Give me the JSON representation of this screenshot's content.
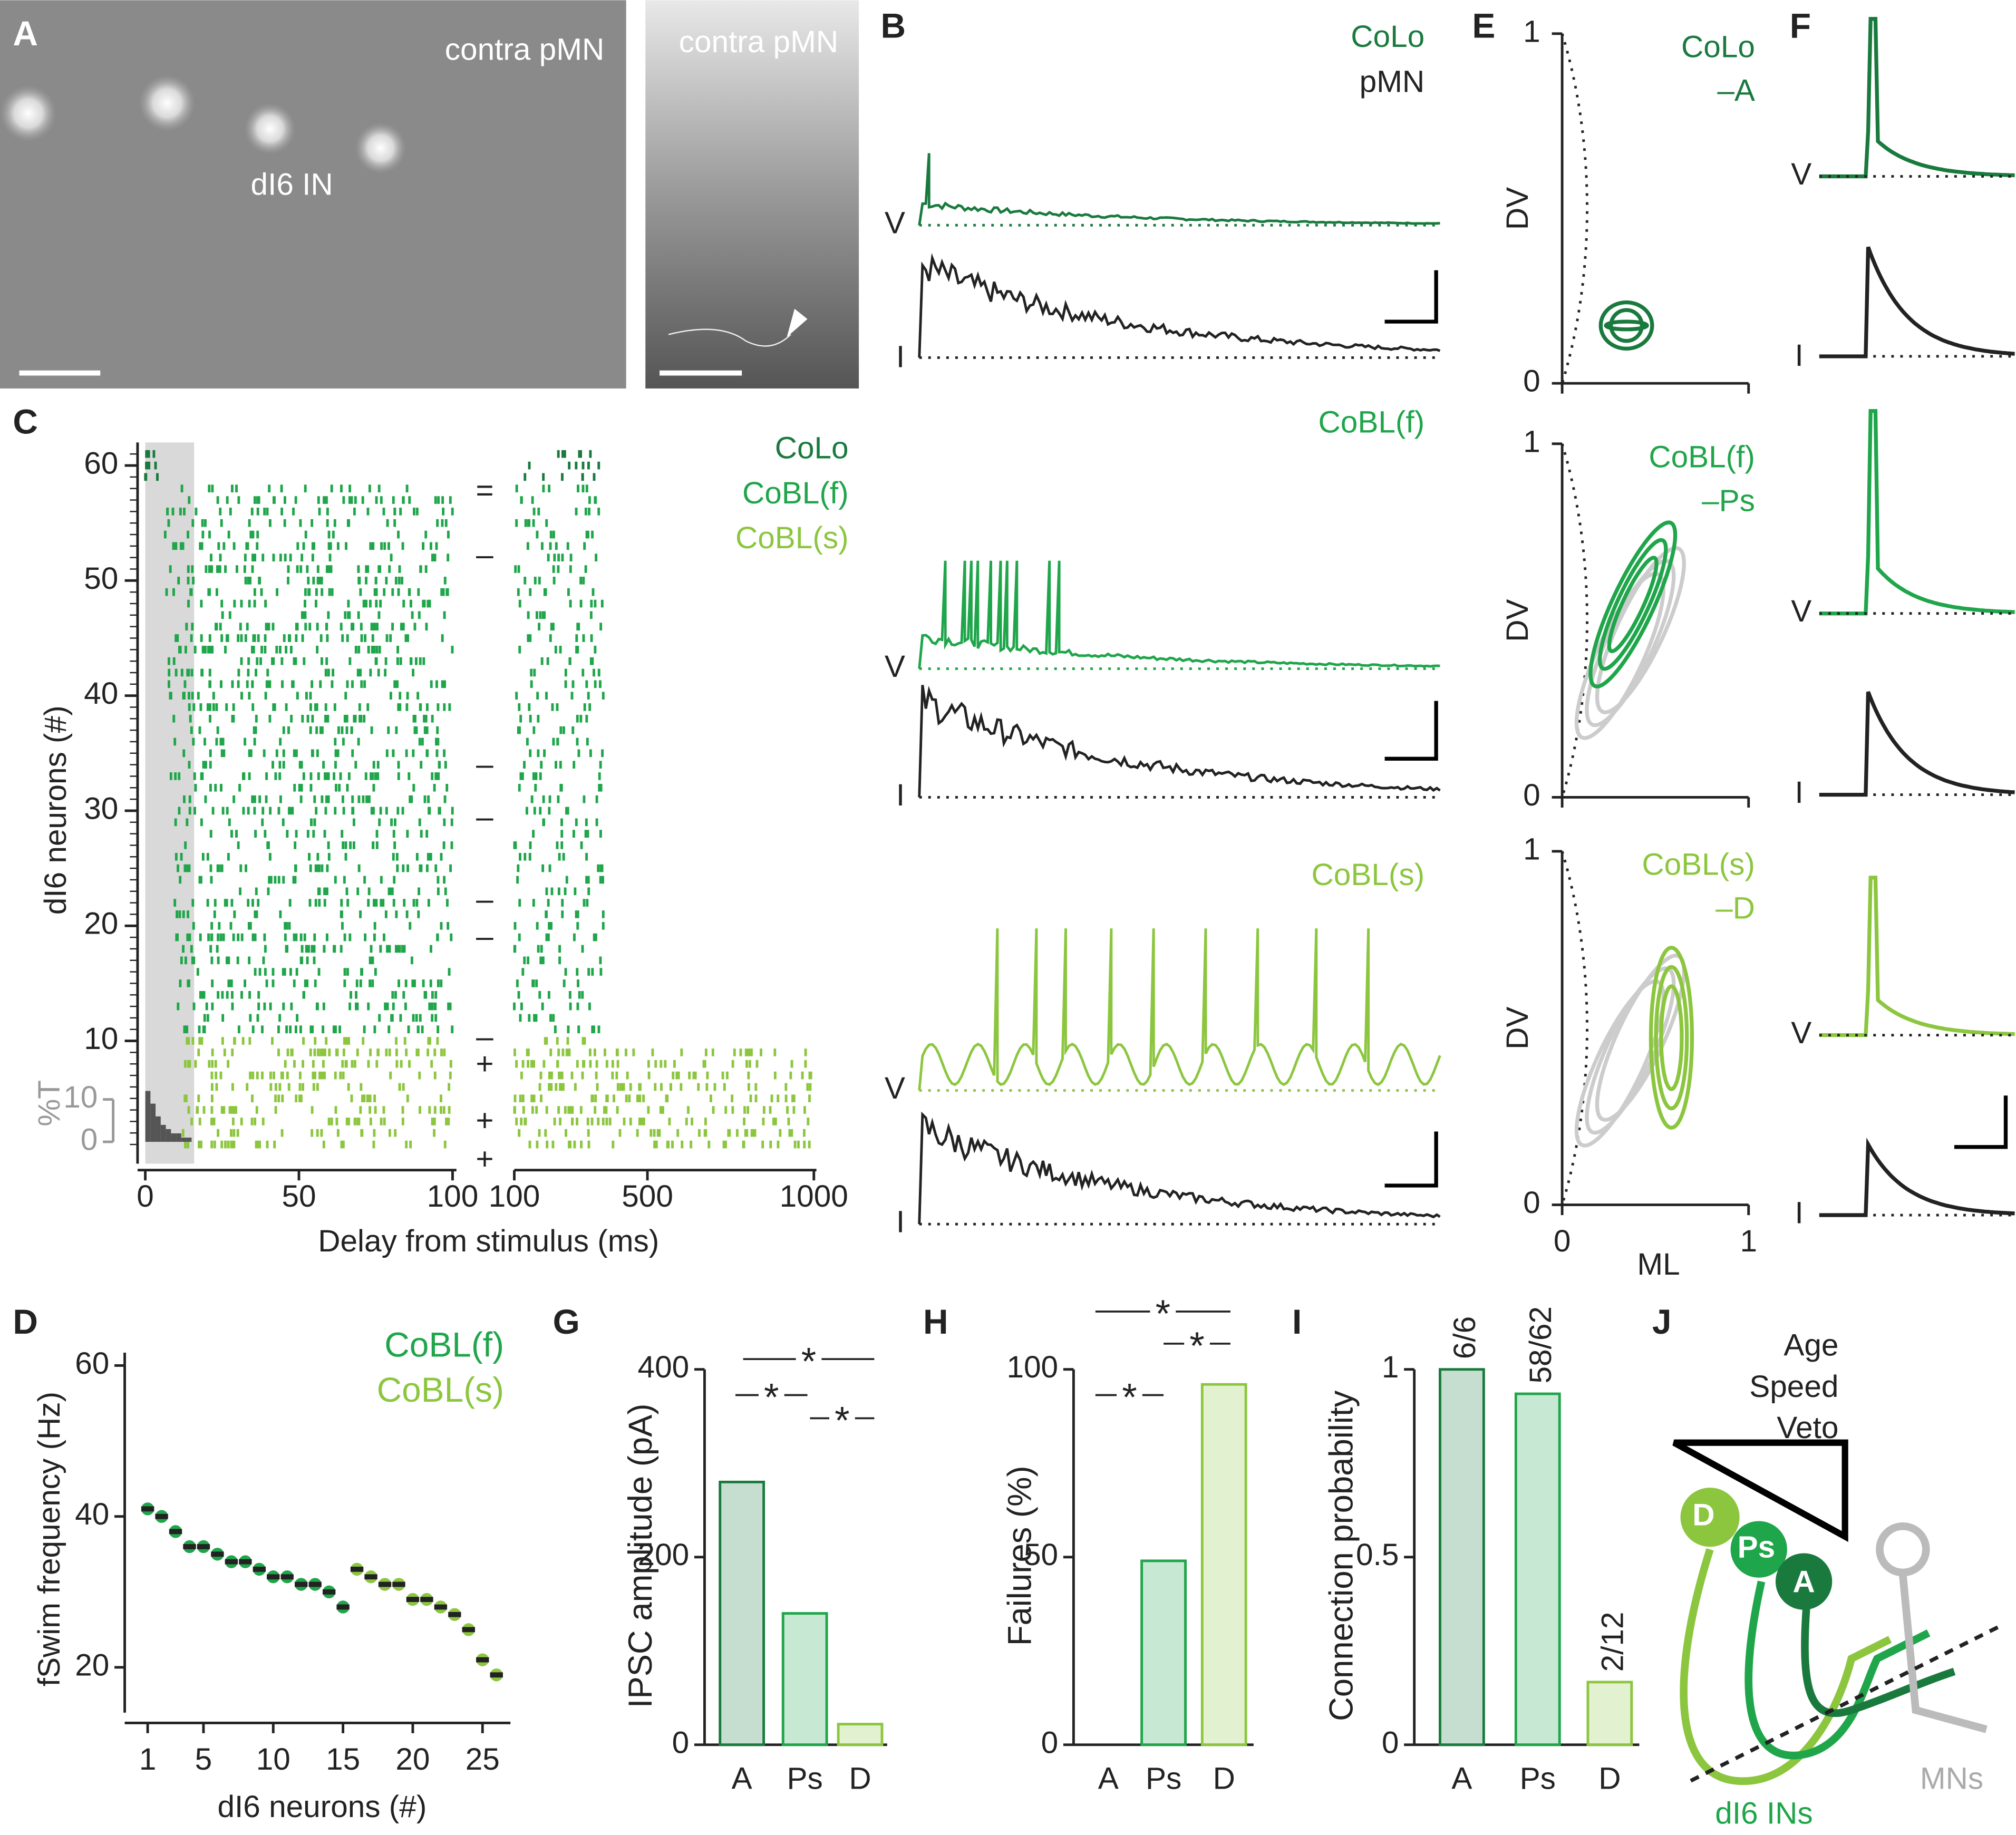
{
  "panels": {
    "A": {
      "label": "A",
      "texts": [
        "contra pMN",
        "dI6 IN",
        "contra pMN"
      ]
    },
    "B": {
      "label": "B",
      "colo": "CoLo",
      "pmn": "pMN",
      "cobl_f": "CoBL(f)",
      "cobl_s": "CoBL(s)",
      "v": "V",
      "i": "I"
    },
    "C": {
      "label": "C",
      "legend": [
        "CoLo",
        "CoBL(f)",
        "CoBL(s)"
      ],
      "ylabel": "dI6 neurons (#)",
      "xlabel": "Delay from stimulus (ms)",
      "ylim": [
        0,
        62
      ],
      "yticks": [
        10,
        20,
        30,
        40,
        50,
        60
      ],
      "xlim": [
        0,
        100
      ],
      "xticks": [
        0,
        50,
        100
      ],
      "x2lim": [
        100,
        1000
      ],
      "x2ticks": [
        100,
        500,
        1000
      ],
      "hist_label": "%T",
      "hist_ticks": [
        0,
        10
      ],
      "markers": [
        "=",
        "–",
        "–",
        "–",
        "–",
        "–",
        "–",
        "+",
        "+",
        "+"
      ]
    },
    "E": {
      "label": "E",
      "ylabel": "DV",
      "xlabel": "ML",
      "ticks": [
        0,
        1
      ],
      "titles": [
        [
          "CoLo",
          "–A"
        ],
        [
          "CoBL(f)",
          "–Ps"
        ],
        [
          "CoBL(s)",
          "–D"
        ]
      ]
    },
    "F": {
      "label": "F",
      "v": "V",
      "i": "I"
    },
    "D": {
      "label": "D"
    },
    "G": {
      "label": "G"
    },
    "H": {
      "label": "H"
    },
    "I": {
      "label": "I"
    },
    "J": {
      "label": "J",
      "texts": [
        "Age",
        "Speed",
        "Veto"
      ],
      "cells": [
        "D",
        "Ps",
        "A"
      ],
      "mns": "MNs",
      "ins": "dI6 INs"
    }
  },
  "chart_data": [
    {
      "type": "scatter",
      "ylabel": "fSwim frequency (Hz)",
      "xlabel": "dI6 neurons (#)",
      "xlim": [
        0,
        27
      ],
      "xticks": [
        1,
        5,
        10,
        15,
        20,
        25
      ],
      "ylim": [
        14,
        60
      ],
      "yticks": [
        20,
        40,
        60
      ],
      "series": [
        {
          "name": "CoBL(f)",
          "color": "#1fa54a",
          "x": [
            1,
            2,
            3,
            4,
            5,
            6,
            7,
            8,
            9,
            10,
            11,
            12,
            13,
            14,
            15
          ],
          "values": [
            41,
            40,
            38,
            36,
            36,
            35,
            34,
            34,
            33,
            32,
            32,
            31,
            31,
            30,
            28
          ]
        },
        {
          "name": "CoBL(s)",
          "color": "#8cc63f",
          "x": [
            16,
            17,
            18,
            19,
            20,
            21,
            22,
            23,
            24,
            25,
            26
          ],
          "values": [
            33,
            32,
            31,
            31,
            29,
            29,
            28,
            27,
            25,
            21,
            19
          ]
        }
      ]
    },
    {
      "type": "bar",
      "ylabel": "IPSC amplitude (pA)",
      "categories": [
        "A",
        "Ps",
        "D"
      ],
      "values": [
        280,
        140,
        22
      ],
      "colors": [
        "#1a7a3e",
        "#1fa54a",
        "#8cc63f"
      ],
      "ylim": [
        0,
        400
      ],
      "yticks": [
        0,
        200,
        400
      ],
      "significance": [
        "*",
        "*",
        "*"
      ]
    },
    {
      "type": "bar",
      "ylabel": "Failures (%)",
      "categories": [
        "A",
        "Ps",
        "D"
      ],
      "values": [
        0,
        49,
        96
      ],
      "colors": [
        "#1a7a3e",
        "#1fa54a",
        "#8cc63f"
      ],
      "ylim": [
        0,
        100
      ],
      "yticks": [
        0,
        50,
        100
      ],
      "significance": [
        "*",
        "*",
        "*"
      ]
    },
    {
      "type": "bar",
      "ylabel": "Connection probability",
      "categories": [
        "A",
        "Ps",
        "D"
      ],
      "values": [
        1,
        0.935,
        0.167
      ],
      "value_labels": [
        "6/6",
        "58/62",
        "2/12"
      ],
      "colors": [
        "#1a7a3e",
        "#1fa54a",
        "#8cc63f"
      ],
      "ylim": [
        0,
        1
      ],
      "yticks": [
        0,
        0.5,
        1
      ]
    }
  ]
}
